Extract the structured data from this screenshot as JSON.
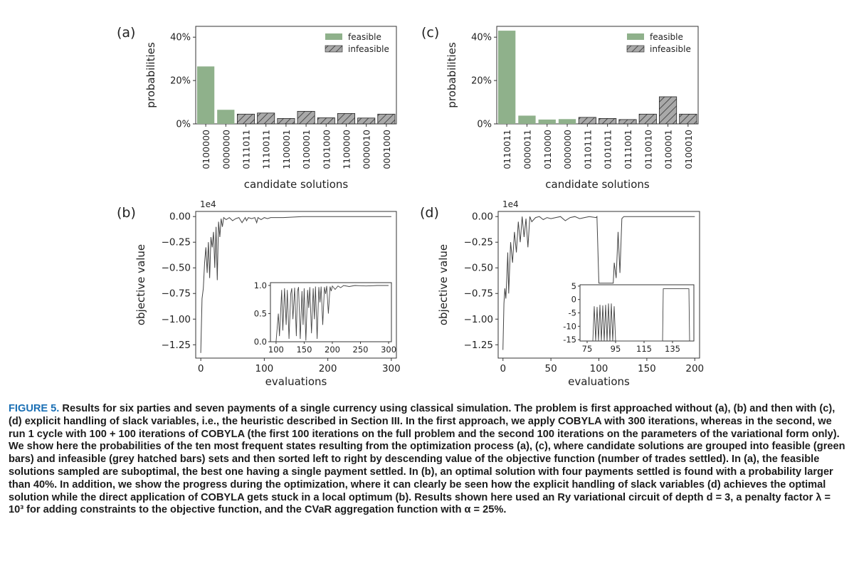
{
  "figure": {
    "panel_labels": [
      "(a)",
      "(b)",
      "(c)",
      "(d)"
    ]
  },
  "caption": {
    "label": "FIGURE 5.",
    "text": "Results for six parties and seven payments of a single currency using classical simulation. The problem is first approached without (a), (b) and then with (c), (d) explicit handling of slack variables, i.e., the heuristic described in Section III. In the first approach, we apply COBYLA with 300 iterations, whereas in the second, we run 1 cycle with 100 + 100 iterations of COBYLA (the first 100 iterations on the full problem and the second 100 iterations on the parameters of the variational form only). We show here the probabilities of the ten most frequent states resulting from the optimization process (a), (c), where candidate solutions are grouped into feasible (green bars) and infeasible (grey hatched bars) sets and then sorted left to right by descending value of the objective function (number of trades settled). In (a), the feasible solutions sampled are suboptimal, the best one having a single payment settled. In (b), an optimal solution with four payments settled is found with a probability larger than 40%. In addition, we show the progress during the optimization, where it can clearly be seen how the explicit handling of slack variables (d) achieves the optimal solution while the direct application of COBYLA gets stuck in a local optimum (b). Results shown here used an Ry variational circuit of depth d = 3, a penalty factor λ = 10³ for adding constraints to the objective function, and the CVaR aggregation function with α = 25%."
  },
  "colors": {
    "feasible": "#8fb18b",
    "infeasible": "#a9a9a9",
    "line": "#444444",
    "label_blue": "#1a6fb4"
  },
  "chart_data": [
    {
      "id": "a",
      "type": "bar",
      "categories": [
        "0100000",
        "0000000",
        "0111011",
        "1110011",
        "1100001",
        "0100001",
        "0101000",
        "1100000",
        "0000010",
        "0001000"
      ],
      "values": [
        26.5,
        6.5,
        4.5,
        5.0,
        2.5,
        5.8,
        2.8,
        4.8,
        2.7,
        4.5
      ],
      "feasible": [
        true,
        true,
        false,
        false,
        false,
        false,
        false,
        false,
        false,
        false
      ],
      "xlabel": "candidate solutions",
      "ylabel": "probabilities",
      "ylim": [
        0,
        45
      ],
      "yticks": [
        "0%",
        "20%",
        "40%"
      ],
      "ytick_values": [
        0,
        20,
        40
      ],
      "legend": [
        "feasible",
        "infeasible"
      ],
      "legend_position": "top-right"
    },
    {
      "id": "c",
      "type": "bar",
      "categories": [
        "0110011",
        "0000011",
        "0110000",
        "0000000",
        "0110111",
        "0101011",
        "0111001",
        "0110010",
        "0100001",
        "0100010"
      ],
      "values": [
        43.0,
        3.8,
        2.0,
        2.2,
        3.0,
        2.5,
        2.0,
        4.5,
        12.5,
        4.5
      ],
      "feasible": [
        true,
        true,
        true,
        true,
        false,
        false,
        false,
        false,
        false,
        false
      ],
      "xlabel": "candidate solutions",
      "ylabel": "probabilities",
      "ylim": [
        0,
        45
      ],
      "yticks": [
        "0%",
        "20%",
        "40%"
      ],
      "ytick_values": [
        0,
        20,
        40
      ],
      "legend": [
        "feasible",
        "infeasible"
      ],
      "legend_position": "top-right"
    },
    {
      "id": "b",
      "type": "line",
      "xlabel": "evaluations",
      "ylabel": "objective value",
      "multiplier": "1e4",
      "xlim": [
        -8,
        308
      ],
      "ylim": [
        -1.38,
        0.05
      ],
      "xticks": [
        "0",
        "100",
        "200",
        "300"
      ],
      "xtick_values": [
        0,
        100,
        200,
        300
      ],
      "yticks": [
        "0.00",
        "−0.25",
        "−0.50",
        "−0.75",
        "−1.00",
        "−1.25"
      ],
      "ytick_values": [
        0,
        -0.25,
        -0.5,
        -0.75,
        -1.0,
        -1.25
      ],
      "x": [
        0,
        2,
        4,
        6,
        8,
        10,
        12,
        14,
        16,
        18,
        20,
        22,
        24,
        26,
        28,
        30,
        32,
        34,
        36,
        40,
        45,
        50,
        55,
        60,
        65,
        70,
        72,
        75,
        80,
        85,
        88,
        90,
        95,
        100,
        105,
        110,
        130,
        160,
        200,
        250,
        300
      ],
      "y": [
        -1.33,
        -0.8,
        -0.7,
        -0.45,
        -0.3,
        -0.55,
        -0.25,
        -0.6,
        -0.2,
        -0.3,
        -0.15,
        -0.5,
        -0.1,
        -0.62,
        -0.05,
        -0.2,
        -0.02,
        -0.1,
        -0.01,
        -0.03,
        -0.01,
        -0.04,
        -0.02,
        -0.01,
        -0.06,
        -0.01,
        -0.04,
        -0.01,
        -0.02,
        -0.01,
        -0.06,
        -0.01,
        -0.03,
        -0.01,
        -0.02,
        -0.01,
        -0.01,
        0.0,
        0.0,
        0.0,
        0.0
      ],
      "inset": {
        "xlim": [
          90,
          305
        ],
        "ylim": [
          0,
          1.05
        ],
        "xticks": [
          "100",
          "150",
          "200",
          "250",
          "300"
        ],
        "xtick_values": [
          100,
          150,
          200,
          250,
          300
        ],
        "yticks": [
          "0.0",
          "0.5",
          "1.0"
        ],
        "ytick_values": [
          0,
          0.5,
          1.0
        ],
        "x": [
          100,
          104,
          106,
          110,
          112,
          115,
          118,
          120,
          123,
          126,
          128,
          130,
          133,
          136,
          138,
          140,
          143,
          146,
          148,
          150,
          153,
          156,
          158,
          160,
          163,
          166,
          168,
          170,
          173,
          176,
          178,
          180,
          183,
          186,
          188,
          190,
          193,
          196,
          198,
          200,
          205,
          210,
          215,
          220,
          230,
          240,
          260,
          280,
          300
        ],
        "y": [
          0.0,
          0.5,
          0.1,
          0.92,
          0.2,
          0.95,
          0.3,
          0.92,
          0.05,
          0.85,
          0.95,
          0.4,
          0.96,
          0.1,
          0.9,
          0.97,
          0.05,
          0.9,
          0.3,
          0.95,
          0.02,
          0.92,
          0.6,
          0.97,
          0.15,
          0.95,
          0.4,
          0.98,
          0.05,
          0.97,
          0.7,
          0.98,
          0.3,
          0.97,
          0.85,
          0.99,
          0.5,
          0.98,
          0.9,
          0.99,
          0.93,
          0.99,
          0.96,
          1.0,
          0.98,
          1.0,
          0.99,
          1.0,
          1.0
        ]
      }
    },
    {
      "id": "d",
      "type": "line",
      "xlabel": "evaluations",
      "ylabel": "objective value",
      "multiplier": "1e4",
      "xlim": [
        -5,
        205
      ],
      "ylim": [
        -1.38,
        0.05
      ],
      "xticks": [
        "0",
        "50",
        "100",
        "150",
        "200"
      ],
      "xtick_values": [
        0,
        50,
        100,
        150,
        200
      ],
      "yticks": [
        "0.00",
        "−0.25",
        "−0.50",
        "−0.75",
        "−1.00",
        "−1.25"
      ],
      "ytick_values": [
        0,
        -0.25,
        -0.5,
        -0.75,
        -1.0,
        -1.25
      ],
      "x": [
        0,
        1,
        2,
        3,
        4,
        5,
        6,
        8,
        10,
        12,
        14,
        16,
        18,
        20,
        22,
        24,
        26,
        28,
        30,
        34,
        38,
        42,
        46,
        50,
        55,
        60,
        65,
        70,
        75,
        80,
        85,
        90,
        97,
        98,
        100,
        101,
        115,
        116,
        118,
        120,
        122,
        124,
        126,
        130,
        140,
        160,
        180,
        200
      ],
      "y": [
        -1.3,
        -0.85,
        -0.7,
        -0.8,
        -0.6,
        -0.35,
        -0.75,
        -0.25,
        -0.45,
        -0.15,
        -0.35,
        -0.05,
        -0.25,
        0.0,
        -0.2,
        -0.02,
        -0.3,
        0.0,
        -0.05,
        -0.01,
        0.0,
        -0.03,
        -0.01,
        -0.02,
        -0.01,
        0.0,
        -0.04,
        -0.01,
        0.0,
        -0.02,
        -0.01,
        0.0,
        -0.01,
        0.0,
        -0.65,
        -0.65,
        -0.65,
        -0.45,
        -0.6,
        -0.15,
        -0.55,
        -0.02,
        0.0,
        0.0,
        0.0,
        0.0,
        0.0,
        0.0
      ],
      "inset": {
        "xlim": [
          70,
          150
        ],
        "ylim": [
          -15.5,
          5.5
        ],
        "xticks": [
          "75",
          "95",
          "115",
          "135"
        ],
        "xtick_values": [
          75,
          95,
          115,
          135
        ],
        "yticks": [
          "5",
          "0",
          "-5",
          "-10",
          "-15"
        ],
        "ytick_values": [
          5,
          0,
          -5,
          -10,
          -15
        ],
        "x": [
          79,
          80,
          81,
          82,
          83,
          84,
          85,
          86,
          87,
          88,
          89,
          90,
          91,
          92,
          93,
          94,
          95,
          96,
          128,
          128.5,
          129,
          146,
          146.5,
          147
        ],
        "y": [
          -15.5,
          -2.5,
          -15.5,
          -2.8,
          -15.5,
          -2.0,
          -15.5,
          -2.2,
          -15.5,
          -2.0,
          -15.5,
          -1.5,
          -15.5,
          -1.5,
          -15.5,
          -2.5,
          -15.5,
          -15.5,
          -15.5,
          4.0,
          4.0,
          4.0,
          4.0,
          -15.5
        ]
      }
    }
  ]
}
